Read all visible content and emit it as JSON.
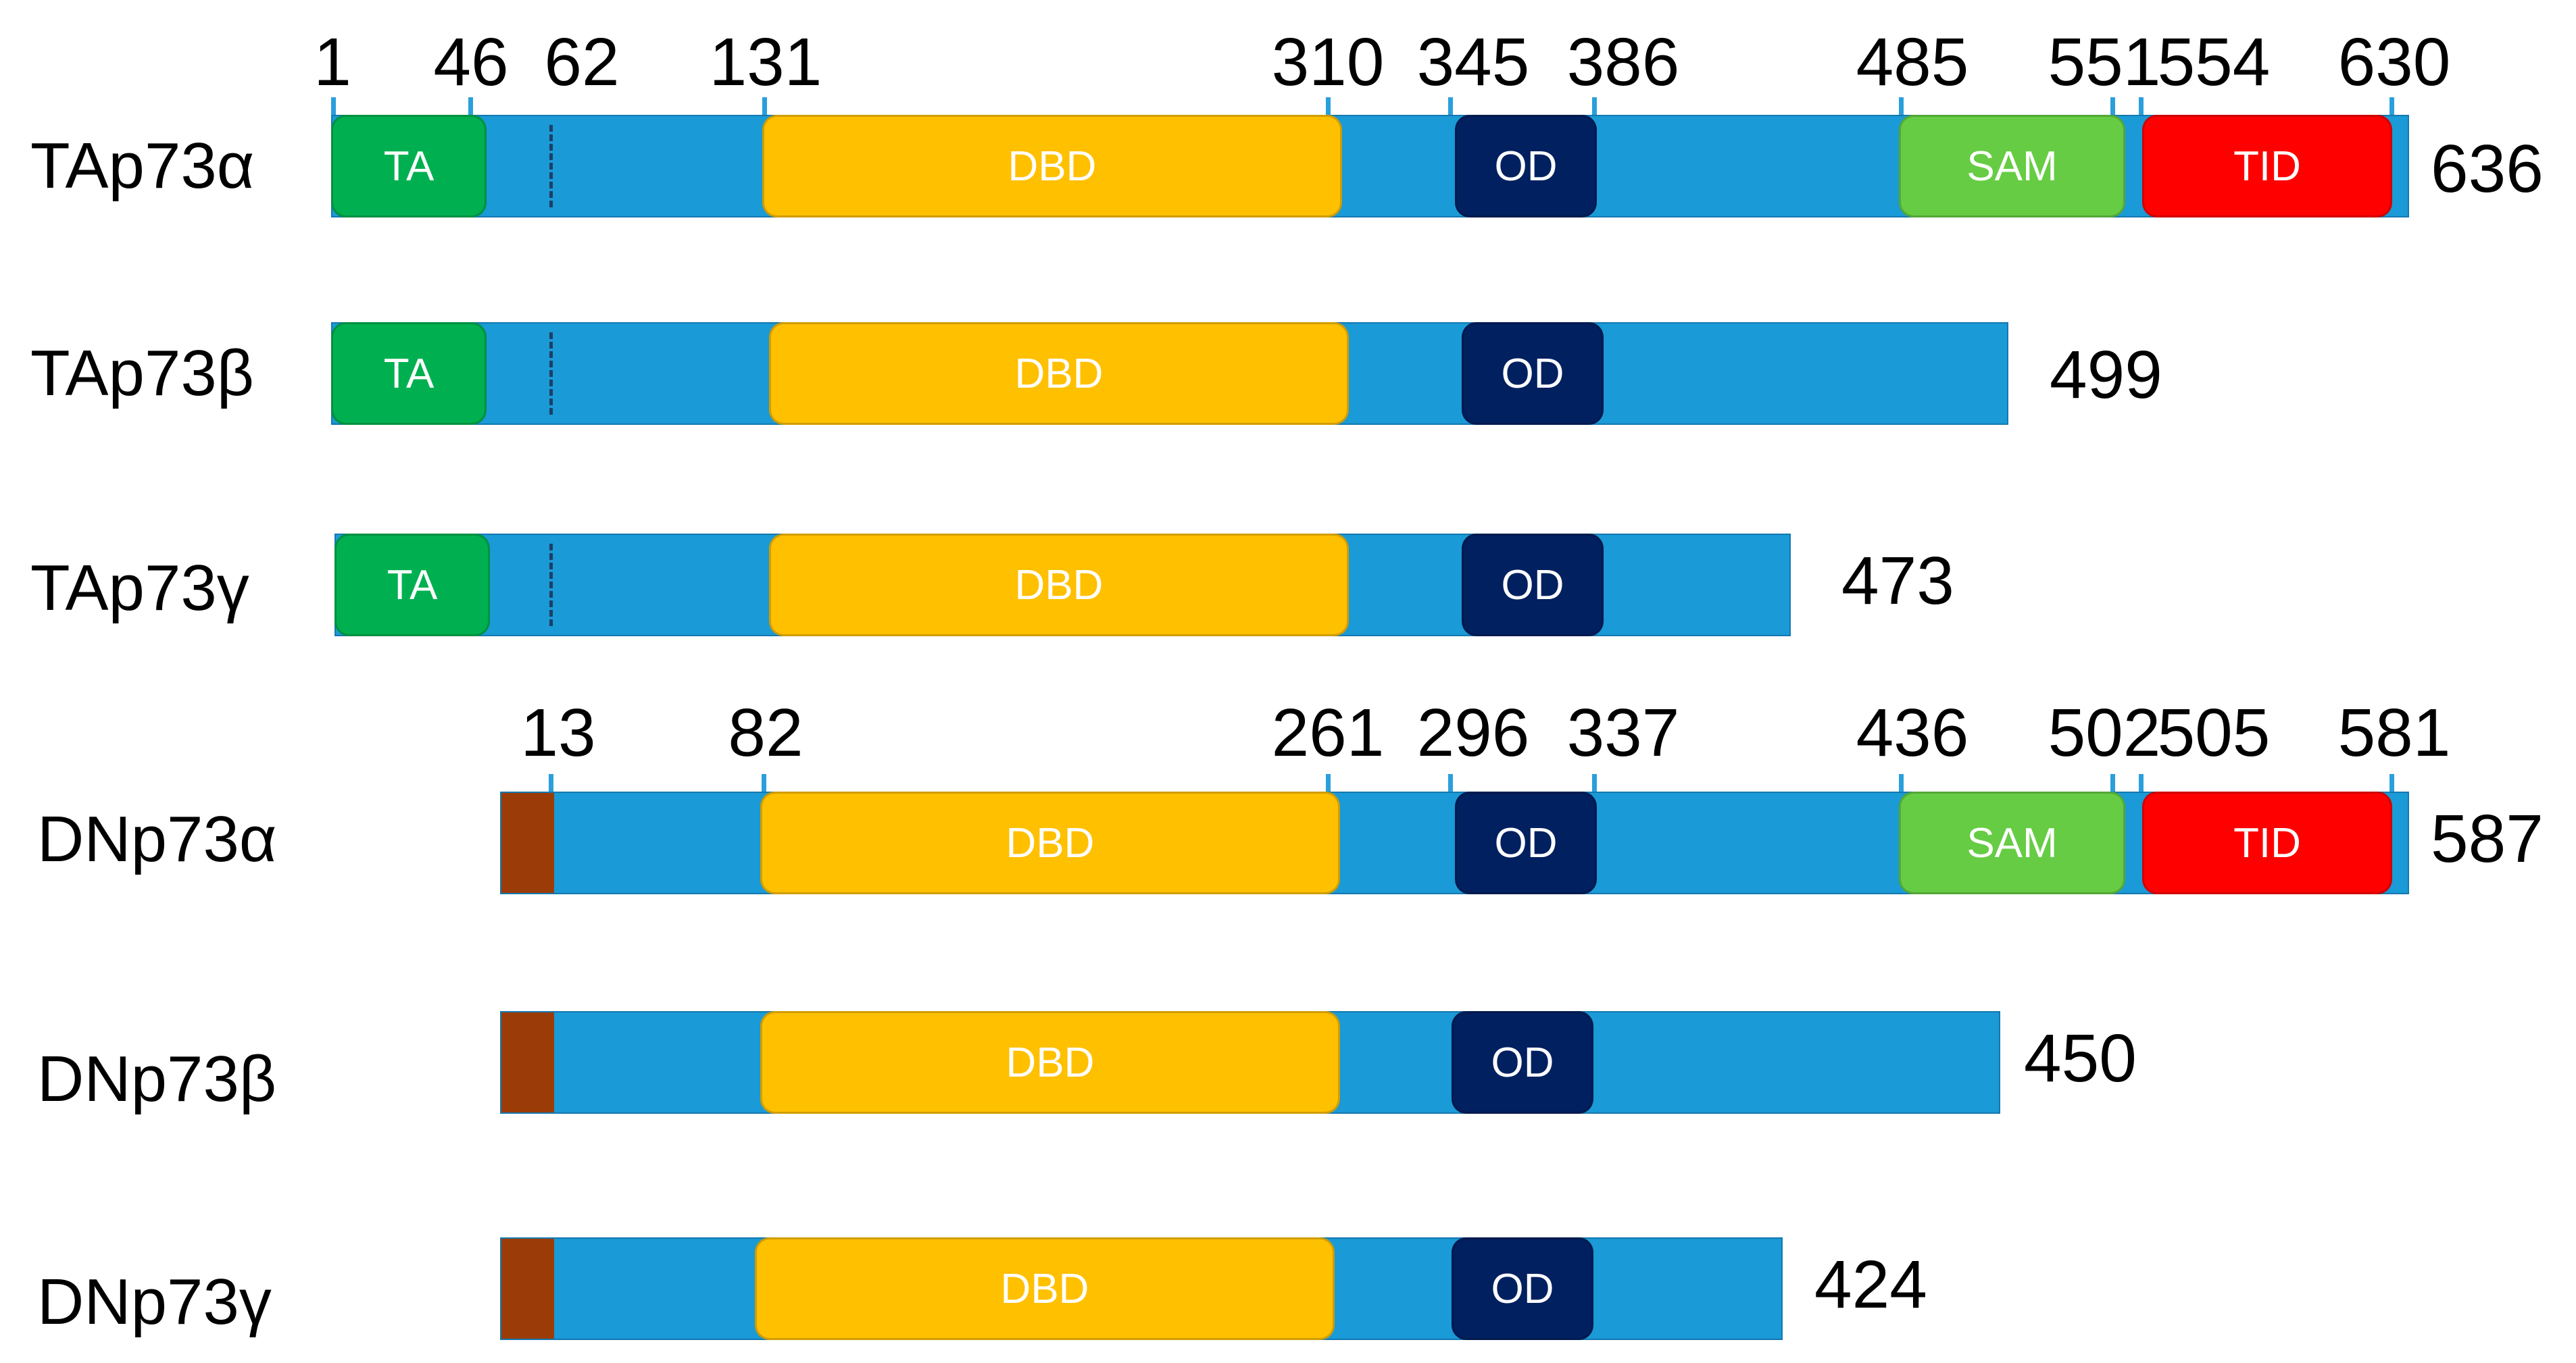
{
  "colors": {
    "bar": "#1a9ad6",
    "TA": "#00b050",
    "DBD": "#ffc000",
    "OD": "#002060",
    "SAM": "#66cc44",
    "TID": "#ff0000",
    "DN": "#9b3c08",
    "tick": "#2a9fdc",
    "dash": "#1e3f66"
  },
  "isoforms": [
    {
      "name": "TAp73α",
      "length": 636,
      "positions": [
        "1",
        "46",
        "62",
        "131",
        "310",
        "345",
        "386",
        "485",
        "551",
        "554",
        "630"
      ],
      "domains": [
        {
          "label": "TA",
          "type": "TA"
        },
        {
          "label": "DBD",
          "type": "DBD"
        },
        {
          "label": "OD",
          "type": "OD"
        },
        {
          "label": "SAM",
          "type": "SAM"
        },
        {
          "label": "TID",
          "type": "TID"
        }
      ]
    },
    {
      "name": "TAp73β",
      "length": 499,
      "positions": [],
      "domains": [
        {
          "label": "TA",
          "type": "TA"
        },
        {
          "label": "DBD",
          "type": "DBD"
        },
        {
          "label": "OD",
          "type": "OD"
        }
      ]
    },
    {
      "name": "TAp73γ",
      "length": 473,
      "positions": [],
      "domains": [
        {
          "label": "TA",
          "type": "TA"
        },
        {
          "label": "DBD",
          "type": "DBD"
        },
        {
          "label": "OD",
          "type": "OD"
        }
      ]
    },
    {
      "name": "DNp73α",
      "length": 587,
      "positions": [
        "13",
        "82",
        "261",
        "296",
        "337",
        "436",
        "502",
        "505",
        "581"
      ],
      "domains": [
        {
          "label": "",
          "type": "DN"
        },
        {
          "label": "DBD",
          "type": "DBD"
        },
        {
          "label": "OD",
          "type": "OD"
        },
        {
          "label": "SAM",
          "type": "SAM"
        },
        {
          "label": "TID",
          "type": "TID"
        }
      ]
    },
    {
      "name": "DNp73β",
      "length": 450,
      "positions": [],
      "domains": [
        {
          "label": "",
          "type": "DN"
        },
        {
          "label": "DBD",
          "type": "DBD"
        },
        {
          "label": "OD",
          "type": "OD"
        }
      ]
    },
    {
      "name": "DNp73γ",
      "length": 424,
      "positions": [],
      "domains": [
        {
          "label": "",
          "type": "DN"
        },
        {
          "label": "DBD",
          "type": "DBD"
        },
        {
          "label": "OD",
          "type": "OD"
        }
      ]
    }
  ]
}
